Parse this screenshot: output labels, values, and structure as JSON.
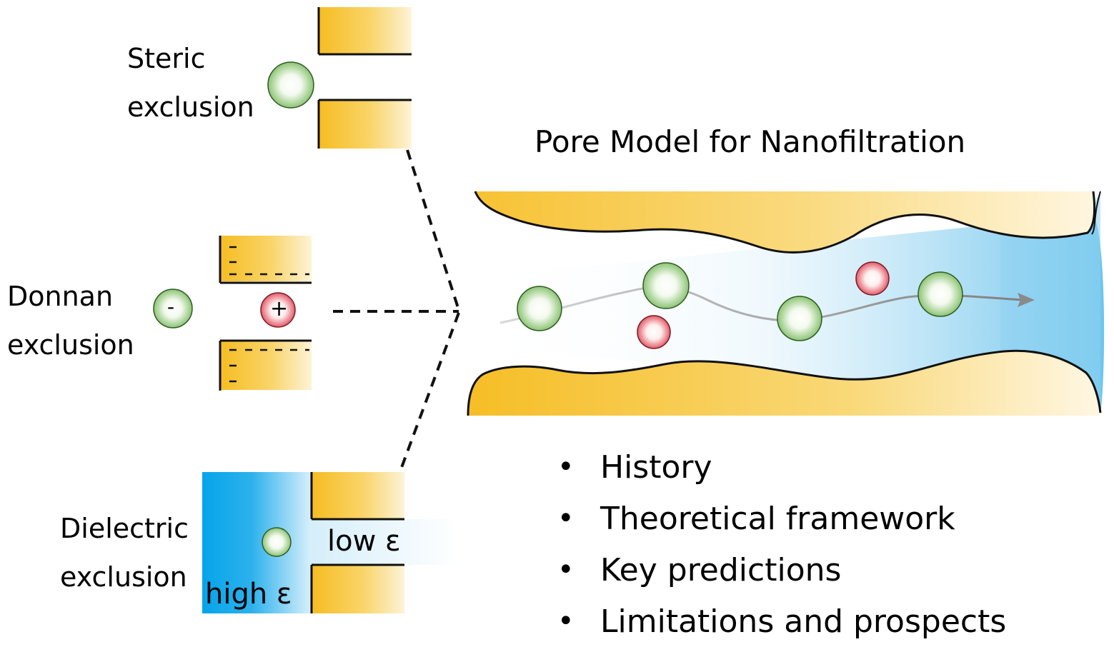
{
  "mechanisms": {
    "steric": {
      "line1": "Steric",
      "line2": "exclusion"
    },
    "donnan": {
      "line1": "Donnan",
      "line2": "exclusion",
      "anion_sign": "-",
      "cation_sign": "+",
      "wall_charge": "-"
    },
    "dielectric": {
      "line1": "Dielectric",
      "line2": "exclusion",
      "high_label": "high ε",
      "low_label": "low ε"
    }
  },
  "pore": {
    "title": "Pore Model for Nanofiltration"
  },
  "bullets": [
    "History",
    "Theoretical framework",
    "Key predictions",
    "Limitations and prospects"
  ],
  "colors": {
    "wall_gold": "#f6c02e",
    "water_blue": "#1aa8e8",
    "neutral_solute": "#8fc67a",
    "cation": "#e85a6a",
    "dashed_line": "#111111",
    "arrow_gray": "#8a8a8a"
  }
}
